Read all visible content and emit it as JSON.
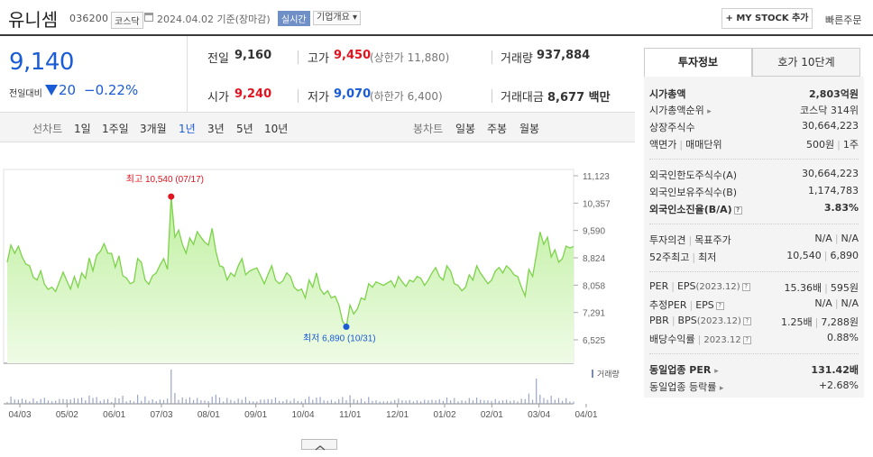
{
  "header": {
    "name": "유니셈",
    "code": "036200",
    "market": "코스닥",
    "asof": "2024.04.02 기준(장마감)",
    "realtime": "실시간",
    "company_overview": "기업개요 ▾",
    "mystock_btn": "+ MY STOCK 추가",
    "fast_order": "빠른주문"
  },
  "summary": {
    "current_price": "9,140",
    "change_label": "전일대비",
    "change_value": "20",
    "change_pct": "−0.22%",
    "prev_label": "전일",
    "prev_value": "9,160",
    "high_label": "고가",
    "high_value": "9,450",
    "upper_limit": "(상한가 11,880)",
    "volume_label": "거래량",
    "volume_value": "937,884",
    "open_label": "시가",
    "open_value": "9,240",
    "low_label": "저가",
    "low_value": "9,070",
    "lower_limit": "(하한가 6,400)",
    "amount_label": "거래대금",
    "amount_value": "8,677 백만"
  },
  "periods": {
    "line_label": "선차트",
    "line_items": [
      "1일",
      "1주일",
      "3개월",
      "1년",
      "3년",
      "5년",
      "10년"
    ],
    "active": "1년",
    "candle_label": "봉차트",
    "candle_items": [
      "일봉",
      "주봉",
      "월봉"
    ]
  },
  "chart_data": {
    "type": "area",
    "x_ticks": [
      "04/03",
      "05/02",
      "06/01",
      "07/03",
      "08/01",
      "09/01",
      "10/04",
      "11/01",
      "12/01",
      "01/02",
      "02/01",
      "03/04",
      "04/01"
    ],
    "y_ticks": [
      "11,123",
      "10,357",
      "9,590",
      "8,824",
      "8,058",
      "7,291",
      "6,525"
    ],
    "ylim": [
      6525,
      11123
    ],
    "high_label": "최고 10,540 (07/17)",
    "low_label": "최저 6,890 (10/31)",
    "volume_legend": "거래량",
    "series": [
      {
        "values": [
          8700,
          9180,
          8950,
          9150,
          8850,
          8650,
          8600,
          8280,
          8200,
          8460,
          8080,
          7940,
          8000,
          7880,
          8150,
          8420,
          8180,
          7950,
          8300,
          8000,
          8400,
          8250,
          8820,
          8460,
          8900,
          9000,
          9220,
          8950,
          8950,
          8560,
          8880,
          8320,
          8260,
          8100,
          8150,
          8800,
          8700,
          8200,
          8080,
          8320,
          8400,
          8620,
          8800,
          8500,
          10540,
          9400,
          9600,
          9200,
          8950,
          9380,
          9200,
          9560,
          9400,
          9260,
          9180,
          9650,
          9000,
          8600,
          8560,
          8200,
          8400,
          8300,
          8600,
          8800,
          8350,
          8450,
          8500,
          8540,
          8320,
          8100,
          8360,
          8600,
          8200,
          8100,
          8180,
          8400,
          8300,
          8000,
          7900,
          7950,
          7700,
          8200,
          8000,
          8400,
          7950,
          7800,
          7900,
          7700,
          7750,
          7500,
          7050,
          6890,
          7500,
          7250,
          7400,
          7700,
          7650,
          8100,
          8000,
          8150,
          8100,
          8050,
          8120,
          8180,
          8000,
          8300,
          8150,
          8020,
          8200,
          8150,
          8300,
          8250,
          8050,
          8200,
          8400,
          8550,
          8300,
          8200,
          8600,
          8450,
          8100,
          8050,
          7900,
          8000,
          8350,
          8200,
          8600,
          8400,
          8250,
          8100,
          8200,
          8450,
          8550,
          8400,
          8600,
          8500,
          8350,
          8300,
          8000,
          7750,
          8500,
          8300,
          8900,
          9550,
          9200,
          9400,
          8850,
          9050,
          8700,
          8800,
          9150,
          9100,
          9140
        ]
      }
    ],
    "high_index": 44,
    "low_index": 91
  },
  "colors": {
    "line": "#7dd24a",
    "area_top": "#bff0a0",
    "area_bottom": "#effbe6",
    "up": "#e0141e",
    "down": "#1a5bd6"
  },
  "info": {
    "tab_active": "투자정보",
    "tab_inactive": "호가 10단계",
    "market_cap_label": "시가총액",
    "market_cap_value": "2,803억원",
    "mc_rank_label": "시가총액순위",
    "mc_rank_value": "코스닥 314위",
    "shares_label": "상장주식수",
    "shares_value": "30,664,223",
    "par_label": "액면가",
    "unit_label": "매매단위",
    "par_value": "500원",
    "unit_value": "1주",
    "foreign_limit_label": "외국인한도주식수(A)",
    "foreign_limit_value": "30,664,223",
    "foreign_hold_label": "외국인보유주식수(B)",
    "foreign_hold_value": "1,174,783",
    "foreign_ratio_label": "외국인소진율(B/A)",
    "foreign_ratio_value": "3.83%",
    "opinion_label": "투자의견",
    "target_label": "목표주가",
    "opinion_value": "N/A",
    "target_value": "N/A",
    "w52_high_label": "52주최고",
    "w52_low_label": "최저",
    "w52_high": "10,540",
    "w52_low": "6,890",
    "per_label": "PER",
    "eps_label": "EPS",
    "eps_date": "(2023.12)",
    "per_value": "15.36배",
    "eps_value": "595원",
    "est_per_label": "추정PER",
    "est_eps_label": "EPS",
    "est_per_value": "N/A",
    "est_eps_value": "N/A",
    "pbr_label": "PBR",
    "bps_label": "BPS",
    "bps_date": "(2023.12)",
    "pbr_value": "1.25배",
    "bps_value": "7,288원",
    "div_label": "배당수익률",
    "div_date": "2023.12",
    "div_value": "0.88%",
    "ind_per_label": "동일업종 PER",
    "ind_per_value": "131.42배",
    "ind_rate_label": "동일업종 등락률",
    "ind_rate_value": "+2.68%"
  }
}
